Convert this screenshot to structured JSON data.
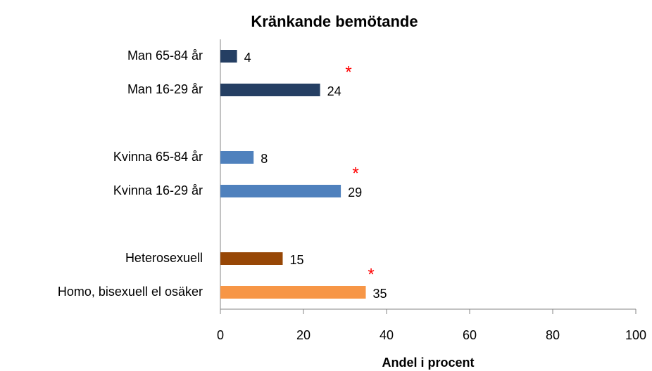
{
  "chart_data": {
    "type": "bar",
    "orientation": "horizontal",
    "title": "Kränkande bemötande",
    "x_label": "Andel i procent",
    "categories": [
      "Man 65-84 år",
      "Man 16-29 år",
      null,
      "Kvinna 65-84 år",
      "Kvinna 16-29 år",
      null,
      "Heterosexuell",
      "Homo, bisexuell el osäker"
    ],
    "values": [
      4,
      24,
      null,
      8,
      29,
      null,
      15,
      35
    ],
    "colors": [
      "#253f63",
      "#253f63",
      null,
      "#4f81bd",
      "#4f81bd",
      null,
      "#974706",
      "#f79646"
    ],
    "xlim": [
      0,
      100
    ],
    "xticks": [
      0,
      20,
      40,
      60,
      80,
      100
    ],
    "annotations": [
      "*",
      "*",
      "*"
    ],
    "annotation_color": "#ff0000"
  }
}
